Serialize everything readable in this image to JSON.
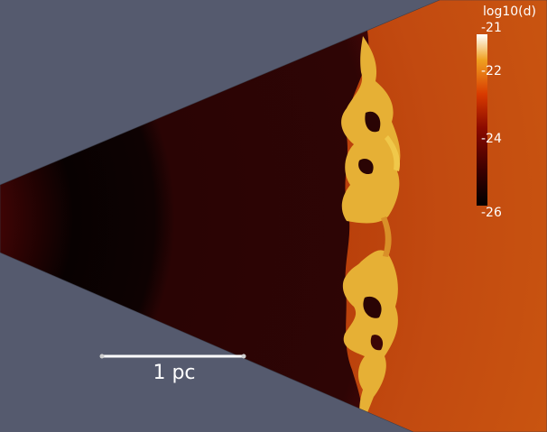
{
  "colorbar": {
    "title": "log10(d)",
    "ticks": [
      {
        "label": "-21",
        "value": -21
      },
      {
        "label": "-22",
        "value": -22
      },
      {
        "label": "-24",
        "value": -24
      },
      {
        "label": "-26",
        "value": -26
      }
    ],
    "range": [
      -26,
      -21
    ],
    "colors": [
      "#000000",
      "#3a0000",
      "#8a0a00",
      "#d83a00",
      "#f0a020",
      "#ffffff"
    ]
  },
  "scale_bar": {
    "label": "1 pc",
    "color": "#ffffff"
  },
  "colors": {
    "background": "#555a6e",
    "ambient_medium": "#c14a0e",
    "shell": "#e8b53a",
    "interior": "#2a0404",
    "cavity": "#0d0202"
  }
}
